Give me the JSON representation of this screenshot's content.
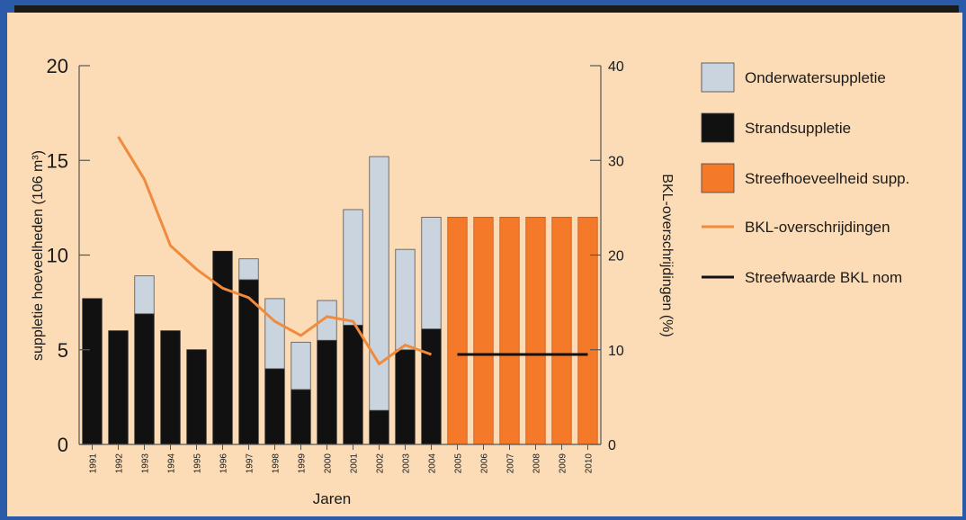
{
  "chart_data": {
    "type": "bar",
    "xlabel": "Jaren",
    "ylabel": "suppletie hoeveelheden (106 m³)",
    "y2label": "BKL-overschrijdingen (%)",
    "ylim": [
      0,
      20
    ],
    "y2lim": [
      0,
      40
    ],
    "yticks": [
      "0",
      "5",
      "10",
      "15",
      "20"
    ],
    "y2ticks": [
      "0",
      "10",
      "20",
      "30",
      "40"
    ],
    "categories": [
      "1991",
      "1992",
      "1993",
      "1994",
      "1995",
      "1996",
      "1997",
      "1998",
      "1999",
      "2000",
      "2001",
      "2002",
      "2003",
      "2004",
      "2005",
      "2006",
      "2007",
      "2008",
      "2009",
      "2010"
    ],
    "series": [
      {
        "name": "Strandsuppletie",
        "kind": "stacked-bar",
        "color": "#111111",
        "values": [
          7.7,
          6.0,
          6.9,
          6.0,
          5.0,
          10.2,
          8.7,
          4.0,
          2.9,
          5.5,
          6.3,
          1.8,
          5.0,
          6.1,
          null,
          null,
          null,
          null,
          null,
          null
        ]
      },
      {
        "name": "Onderwatersuppletie",
        "kind": "stacked-bar",
        "color": "#c9d4df",
        "values": [
          0,
          0,
          2.0,
          0,
          0,
          0,
          1.1,
          3.7,
          2.5,
          2.1,
          6.1,
          13.4,
          5.3,
          5.9,
          null,
          null,
          null,
          null,
          null,
          null
        ]
      },
      {
        "name": "Streefhoeveelheid supp.",
        "kind": "bar",
        "color": "#f47a2a",
        "values": [
          null,
          null,
          null,
          null,
          null,
          null,
          null,
          null,
          null,
          null,
          null,
          null,
          null,
          null,
          12,
          12,
          12,
          12,
          12,
          12
        ]
      },
      {
        "name": "BKL-overschrijdingen",
        "kind": "line",
        "axis": "right",
        "color": "#f08a3c",
        "values": [
          null,
          32.5,
          28.0,
          21.0,
          18.5,
          16.5,
          15.5,
          13.0,
          11.5,
          13.5,
          13.0,
          8.5,
          10.5,
          9.5,
          null,
          null,
          null,
          null,
          null,
          null
        ]
      },
      {
        "name": "Streefwaarde BKL nom",
        "kind": "line",
        "axis": "right",
        "color": "#111111",
        "values": [
          null,
          null,
          null,
          null,
          null,
          null,
          null,
          null,
          null,
          null,
          null,
          null,
          null,
          null,
          9.5,
          9.5,
          9.5,
          9.5,
          9.5,
          9.5
        ]
      }
    ],
    "legend": {
      "placement": "right",
      "items": [
        {
          "label": "Onderwatersuppletie",
          "symbol": "box",
          "color": "#c9d4df"
        },
        {
          "label": "Strandsuppletie",
          "symbol": "box",
          "color": "#111111"
        },
        {
          "label": "Streefhoeveelheid supp.",
          "symbol": "box",
          "color": "#f47a2a"
        },
        {
          "label": "BKL-overschrijdingen",
          "symbol": "line",
          "color": "#f08a3c"
        },
        {
          "label": "Streefwaarde BKL nom",
          "symbol": "line",
          "color": "#111111"
        }
      ]
    },
    "colors": {
      "background": "#fbdcb7",
      "frame": "#2b5aa8"
    }
  }
}
